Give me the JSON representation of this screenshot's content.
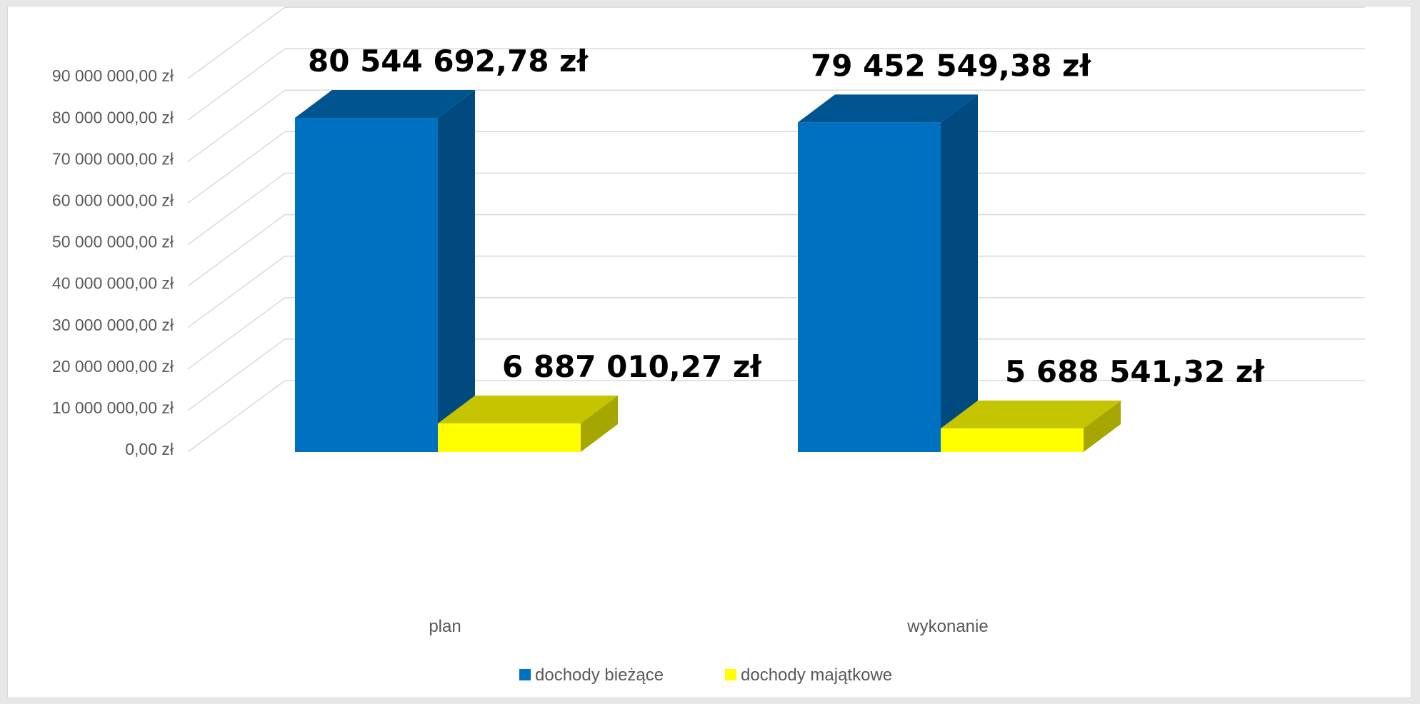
{
  "chart_data": {
    "type": "bar",
    "style": "3d-clustered-column",
    "title": "",
    "xlabel": "",
    "ylabel": "",
    "categories": [
      "plan",
      "wykonanie"
    ],
    "series": [
      {
        "name": "dochody bieżące",
        "values": [
          80544692.78,
          79452549.38
        ],
        "data_labels": [
          "80 544 692,78 zł",
          "79 452 549,38 zł"
        ],
        "color": "#0070c0",
        "side_color": "#004a80",
        "top_color": "#00548f"
      },
      {
        "name": "dochody majątkowe",
        "values": [
          6887010.27,
          5688541.32
        ],
        "data_labels": [
          "6 887 010,27 zł",
          "5 688 541,32 zł"
        ],
        "color": "#ffff00",
        "side_color": "#a6a600",
        "top_color": "#c4c400"
      }
    ],
    "ylim": [
      0,
      90000000
    ],
    "y_ticks": [
      0,
      10000000,
      20000000,
      30000000,
      40000000,
      50000000,
      60000000,
      70000000,
      80000000,
      90000000
    ],
    "y_tick_labels": [
      "0,00 zł",
      "10 000 000,00 zł",
      "20 000 000,00 zł",
      "30 000 000,00 zł",
      "40 000 000,00 zł",
      "50 000 000,00 zł",
      "60 000 000,00 zł",
      "70 000 000,00 zł",
      "80 000 000,00 zł",
      "90 000 000,00 zł"
    ],
    "grid": true,
    "grid_color": "#d9d9d9",
    "legend_position": "bottom"
  }
}
